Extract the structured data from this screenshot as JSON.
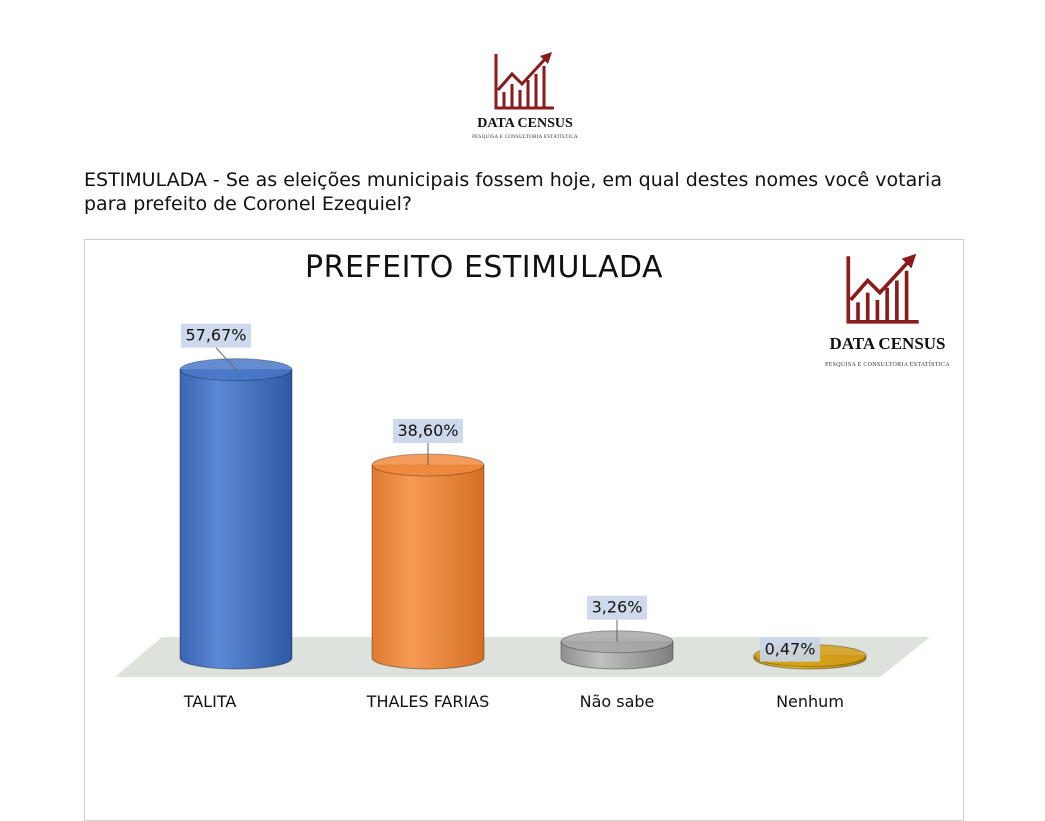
{
  "brand": {
    "name": "DATA CENSUS",
    "tagline": "PESQUISA E CONSULTORIA ESTATÍSTICA",
    "accent_color": "#8b1a1a"
  },
  "question": {
    "text": "ESTIMULADA - Se as eleições municipais fossem hoje, em qual destes nomes você votaria para prefeito de Coronel Ezequiel?"
  },
  "chart_data": {
    "type": "bar",
    "style": "3d-cylinder",
    "title": "PREFEITO ESTIMULADA",
    "xlabel": "",
    "ylabel": "",
    "ylim": [
      0,
      60
    ],
    "grid": false,
    "legend": "none",
    "categories": [
      "TALITA",
      "THALES FARIAS",
      "Não sabe",
      "Nenhum"
    ],
    "values": [
      57.67,
      38.6,
      3.26,
      0.47
    ],
    "value_labels": [
      "57,67%",
      "38,60%",
      "3,26%",
      "0,47%"
    ],
    "colors": [
      "#4a78c8",
      "#f08a3e",
      "#a8a8a8",
      "#d4a017"
    ]
  }
}
